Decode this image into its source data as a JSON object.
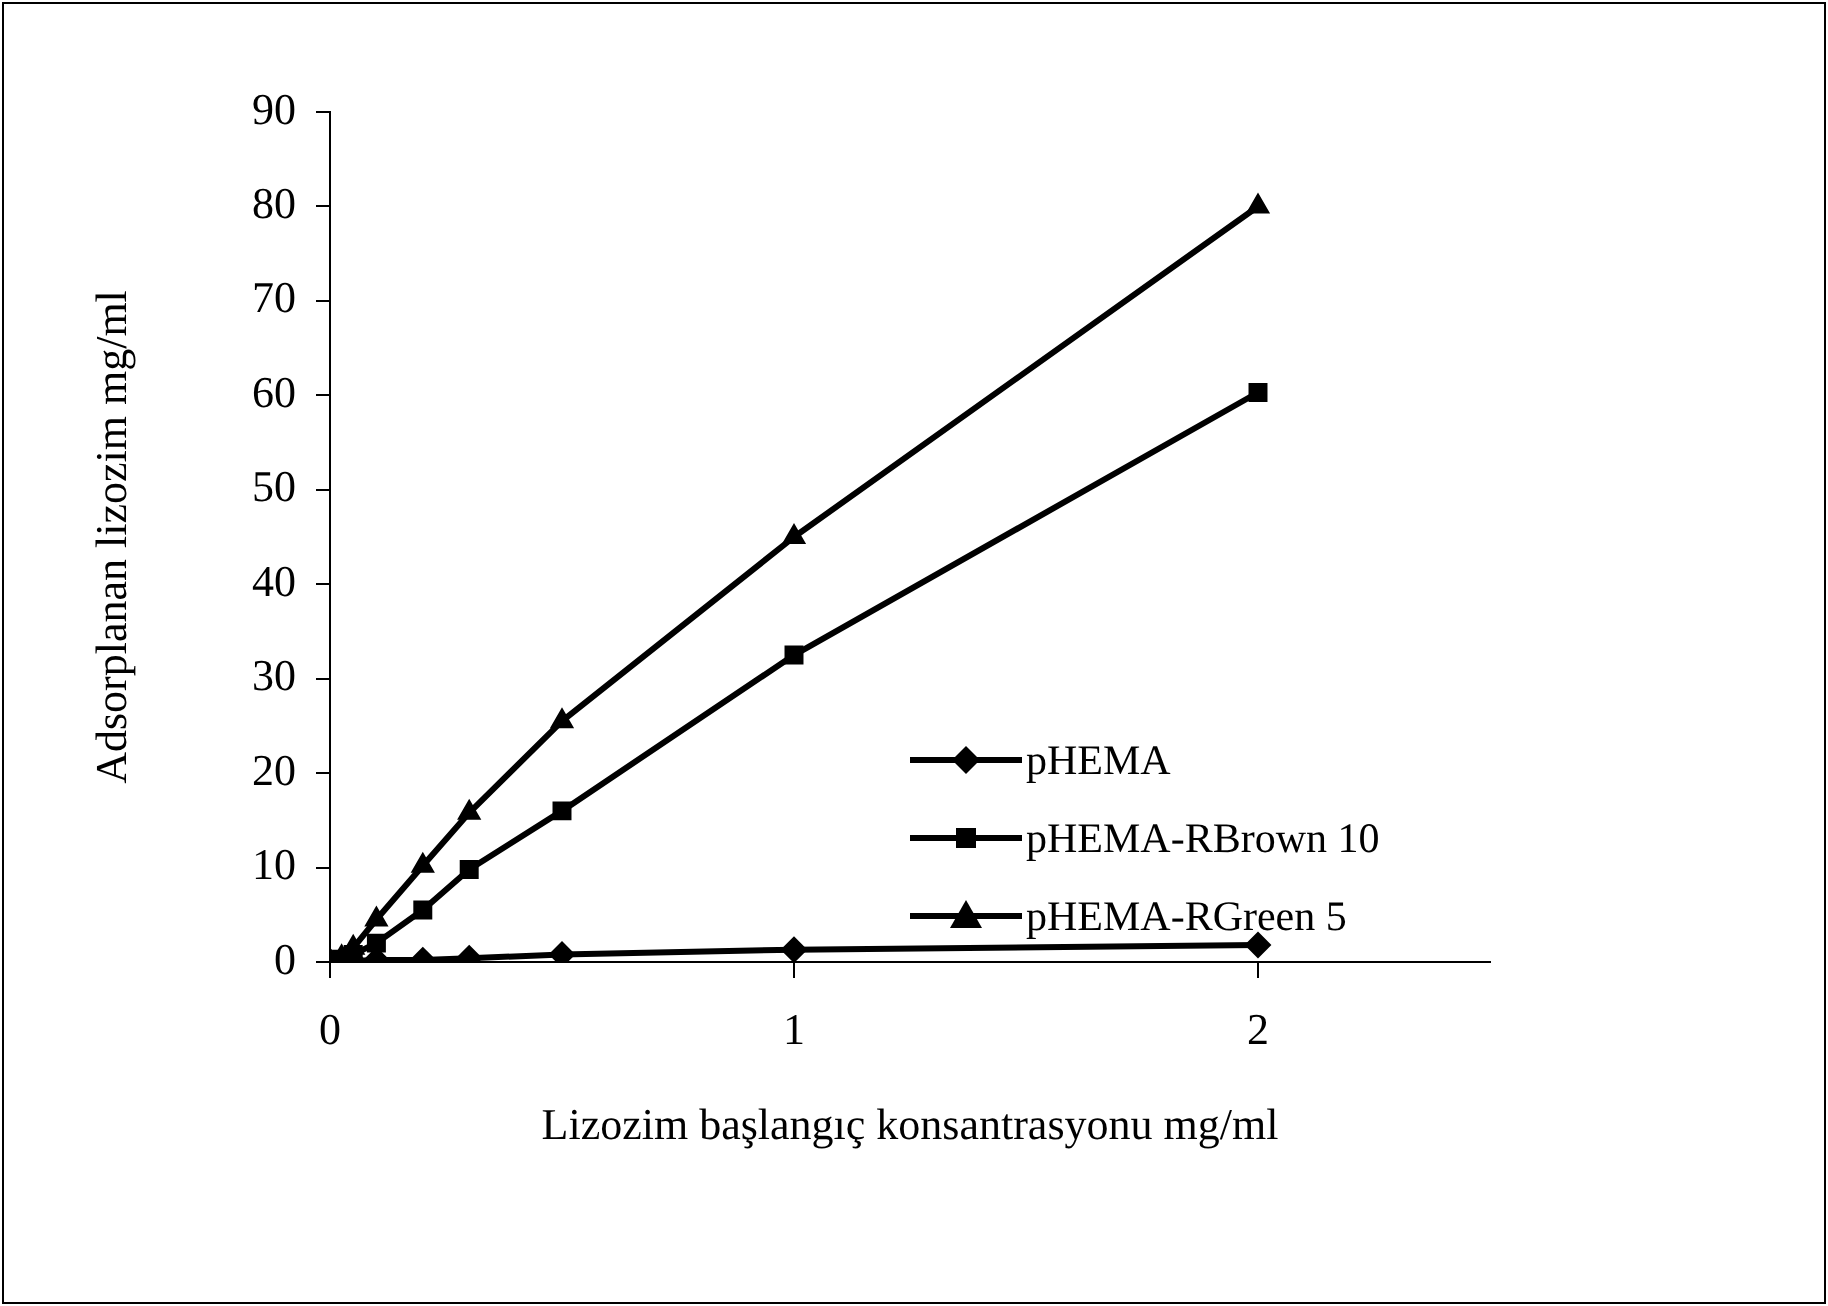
{
  "chart_data": {
    "type": "line",
    "xlabel": "Lizozim başlangıç konsantrasyonu mg/ml",
    "ylabel": "Adsorplanan lizozim mg/ml",
    "x": [
      0,
      0.025,
      0.05,
      0.1,
      0.2,
      0.3,
      0.5,
      1,
      2
    ],
    "xlim": [
      0,
      2.5
    ],
    "xticks": [
      0,
      1,
      2
    ],
    "ylim": [
      0,
      90
    ],
    "yticks": [
      0,
      10,
      20,
      30,
      40,
      50,
      60,
      70,
      80,
      90
    ],
    "grid": false,
    "legend": "right",
    "line_style": "solid",
    "series": [
      {
        "name": "pHEMA",
        "color": "#000000",
        "marker": "diamond",
        "values": [
          0.1,
          0.1,
          0.1,
          0.2,
          0.2,
          0.4,
          0.8,
          1.3,
          1.8
        ]
      },
      {
        "name": "pHEMA-RBrown 10",
        "color": "#000000",
        "marker": "square",
        "values": [
          0,
          0.3,
          0.8,
          2,
          5.5,
          9.8,
          16,
          32.5,
          60.3
        ]
      },
      {
        "name": "pHEMA-RGreen 5",
        "color": "#000000",
        "marker": "triangle",
        "values": [
          0,
          0.5,
          1.5,
          4.5,
          10.2,
          15.8,
          25.5,
          45,
          80
        ]
      }
    ]
  }
}
